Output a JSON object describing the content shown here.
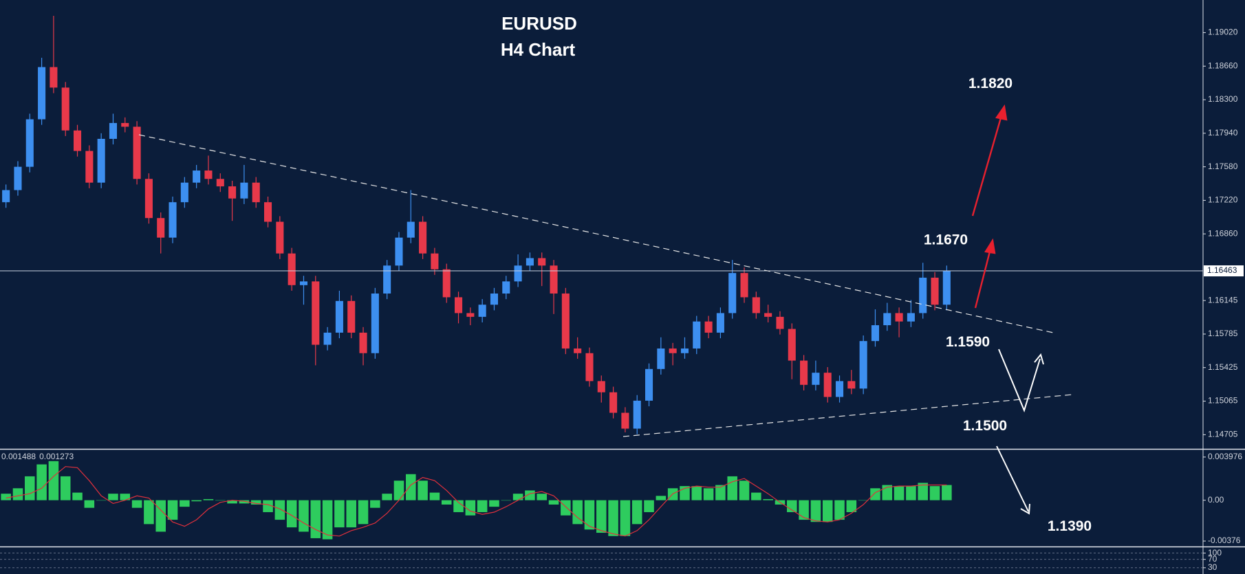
{
  "chart_data": [
    {
      "type": "candlestick",
      "title": "EURUSD",
      "subtitle": "H4 Chart",
      "up_color": "#3d8ff0",
      "down_color": "#e8394a",
      "open": [
        1.172,
        1.1733,
        1.1758,
        1.1809,
        1.1865,
        1.1843,
        1.1797,
        1.1775,
        1.1741,
        1.1788,
        1.1805,
        1.1801,
        1.1745,
        1.1703,
        1.1682,
        1.172,
        1.1741,
        1.1754,
        1.1745,
        1.1737,
        1.1724,
        1.1741,
        1.172,
        1.1699,
        1.1665,
        1.1631,
        1.1635,
        1.1567,
        1.158,
        1.1614,
        1.158,
        1.1558,
        1.1622,
        1.1652,
        1.1682,
        1.1699,
        1.1665,
        1.1648,
        1.1618,
        1.1601,
        1.1597,
        1.161,
        1.1622,
        1.1635,
        1.1652,
        1.166,
        1.1652,
        1.1622,
        1.1563,
        1.1558,
        1.1528,
        1.1516,
        1.1494,
        1.1477,
        1.1507,
        1.1541,
        1.1563,
        1.1558,
        1.1563,
        1.1592,
        1.158,
        1.1601,
        1.1644,
        1.1618,
        1.1601,
        1.1597,
        1.1584,
        1.155,
        1.1524,
        1.1537,
        1.1511,
        1.1528,
        1.152,
        1.1571,
        1.1588,
        1.1601,
        1.1592,
        1.1601,
        1.1639,
        1.161
      ],
      "high": [
        1.1739,
        1.1764,
        1.1815,
        1.1875,
        1.192,
        1.1849,
        1.1803,
        1.1781,
        1.1794,
        1.1815,
        1.1811,
        1.1807,
        1.1751,
        1.1709,
        1.1726,
        1.1747,
        1.176,
        1.177,
        1.1751,
        1.1743,
        1.176,
        1.1747,
        1.1726,
        1.1705,
        1.1671,
        1.1641,
        1.1641,
        1.1586,
        1.1625,
        1.162,
        1.1586,
        1.1628,
        1.1658,
        1.1688,
        1.1733,
        1.1705,
        1.1671,
        1.1654,
        1.1624,
        1.1607,
        1.1616,
        1.1628,
        1.1641,
        1.1664,
        1.1666,
        1.1666,
        1.1658,
        1.1628,
        1.1575,
        1.1564,
        1.1534,
        1.1522,
        1.15,
        1.1513,
        1.1547,
        1.1575,
        1.1569,
        1.1575,
        1.1598,
        1.1598,
        1.1607,
        1.1658,
        1.165,
        1.1624,
        1.161,
        1.1603,
        1.159,
        1.1556,
        1.155,
        1.1543,
        1.1534,
        1.154,
        1.1577,
        1.1605,
        1.1612,
        1.1607,
        1.1615,
        1.1655,
        1.1645,
        1.1652
      ],
      "low": [
        1.1714,
        1.1727,
        1.1752,
        1.1803,
        1.1837,
        1.1791,
        1.1769,
        1.1735,
        1.1735,
        1.1782,
        1.1795,
        1.1739,
        1.1697,
        1.1665,
        1.1676,
        1.1714,
        1.1735,
        1.1739,
        1.1731,
        1.17,
        1.1718,
        1.1714,
        1.1693,
        1.1659,
        1.1625,
        1.161,
        1.1545,
        1.1561,
        1.1574,
        1.1574,
        1.1545,
        1.1552,
        1.1616,
        1.1646,
        1.1676,
        1.1659,
        1.1642,
        1.1612,
        1.159,
        1.1588,
        1.1591,
        1.1604,
        1.1616,
        1.1629,
        1.1646,
        1.163,
        1.16,
        1.1557,
        1.1552,
        1.1522,
        1.1505,
        1.1488,
        1.1473,
        1.1471,
        1.1501,
        1.1535,
        1.1545,
        1.1552,
        1.1557,
        1.1574,
        1.1574,
        1.1595,
        1.1612,
        1.1595,
        1.1591,
        1.1578,
        1.153,
        1.1518,
        1.1518,
        1.1505,
        1.1505,
        1.1514,
        1.1514,
        1.1565,
        1.1582,
        1.1575,
        1.1586,
        1.1595,
        1.1604,
        1.1604
      ],
      "close": [
        1.1733,
        1.1758,
        1.1809,
        1.1865,
        1.1843,
        1.1797,
        1.1775,
        1.1741,
        1.1788,
        1.1805,
        1.1801,
        1.1745,
        1.1703,
        1.1682,
        1.172,
        1.1741,
        1.1754,
        1.1745,
        1.1737,
        1.1724,
        1.1741,
        1.172,
        1.1699,
        1.1665,
        1.1631,
        1.1635,
        1.1567,
        1.158,
        1.1614,
        1.158,
        1.1558,
        1.1622,
        1.1652,
        1.1682,
        1.1699,
        1.1665,
        1.1648,
        1.1618,
        1.1601,
        1.1597,
        1.161,
        1.1622,
        1.1635,
        1.1652,
        1.166,
        1.1652,
        1.1622,
        1.1563,
        1.1558,
        1.1528,
        1.1516,
        1.1494,
        1.1477,
        1.1507,
        1.1541,
        1.1563,
        1.1558,
        1.1563,
        1.1592,
        1.158,
        1.1601,
        1.1644,
        1.1618,
        1.1601,
        1.1597,
        1.1584,
        1.155,
        1.1524,
        1.1537,
        1.1511,
        1.1528,
        1.152,
        1.1571,
        1.1588,
        1.1601,
        1.1592,
        1.1601,
        1.1639,
        1.161,
        1.1646
      ],
      "ylim": [
        1.1456,
        1.1937
      ],
      "yticks": [
        {
          "value": 1.1902,
          "label": "1.19020"
        },
        {
          "value": 1.1866,
          "label": "1.18660"
        },
        {
          "value": 1.183,
          "label": "1.18300"
        },
        {
          "value": 1.1794,
          "label": "1.17940"
        },
        {
          "value": 1.1758,
          "label": "1.17580"
        },
        {
          "value": 1.1722,
          "label": "1.17220"
        },
        {
          "value": 1.1686,
          "label": "1.16860"
        },
        {
          "value": 1.16145,
          "label": "1.16145"
        },
        {
          "value": 1.15785,
          "label": "1.15785"
        },
        {
          "value": 1.15425,
          "label": "1.15425"
        },
        {
          "value": 1.15065,
          "label": "1.15065"
        },
        1.14705
      ],
      "current_price": 1.16463,
      "annotations": [
        {
          "value": 1.182,
          "label": "1.1820"
        },
        {
          "value": 1.167,
          "label": "1.1670"
        },
        {
          "value": 1.159,
          "label": "1.1590"
        },
        {
          "value": 1.15,
          "label": "1.1500"
        },
        {
          "value": 1.139,
          "label": "1.1390"
        }
      ]
    },
    {
      "type": "bar",
      "readout": [
        0.001488,
        0.001273
      ],
      "color": "#2ecc5e",
      "signal_color": "#e0303c",
      "values": [
        0.0006,
        0.0011,
        0.0022,
        0.0033,
        0.0036,
        0.0022,
        0.0007,
        -0.0007,
        0.0,
        0.0006,
        0.0006,
        -0.0007,
        -0.0022,
        -0.0029,
        -0.0018,
        -0.0006,
        -0.0001,
        0.0001,
        0.0,
        -0.0003,
        -0.0003,
        -0.0004,
        -0.0011,
        -0.0018,
        -0.0025,
        -0.0029,
        -0.0035,
        -0.0036,
        -0.0025,
        -0.0025,
        -0.0022,
        -0.0007,
        0.0006,
        0.0018,
        0.0024,
        0.0018,
        0.0007,
        -0.0004,
        -0.0011,
        -0.0014,
        -0.0011,
        -0.0006,
        0.0,
        0.0006,
        0.0009,
        0.0006,
        -0.0004,
        -0.0014,
        -0.0022,
        -0.0027,
        -0.003,
        -0.0033,
        -0.0033,
        -0.0022,
        -0.0011,
        0.0004,
        0.0011,
        0.0013,
        0.0013,
        0.0011,
        0.0014,
        0.0022,
        0.0018,
        0.0007,
        0.0001,
        -0.0004,
        -0.0011,
        -0.0018,
        -0.002,
        -0.002,
        -0.0018,
        -0.0011,
        0.0,
        0.0011,
        0.0014,
        0.0013,
        0.0013,
        0.0016,
        0.0013,
        0.0014
      ],
      "signal": [
        0.0002,
        0.0004,
        0.0006,
        0.0011,
        0.0022,
        0.0031,
        0.003,
        0.0018,
        0.0004,
        -0.0003,
        0.0,
        0.0004,
        0.0002,
        -0.0009,
        -0.002,
        -0.0024,
        -0.0018,
        -0.0008,
        -0.0002,
        0.0,
        -0.0001,
        -0.0003,
        -0.0004,
        -0.0008,
        -0.0014,
        -0.0021,
        -0.0027,
        -0.0032,
        -0.0033,
        -0.0028,
        -0.0025,
        -0.0021,
        -0.0012,
        0.0,
        0.0014,
        0.0021,
        0.0018,
        0.0009,
        -0.0002,
        -0.001,
        -0.0013,
        -0.0011,
        -0.0006,
        0.0,
        0.0006,
        0.0008,
        0.0004,
        -0.0006,
        -0.0016,
        -0.0024,
        -0.0028,
        -0.0031,
        -0.0033,
        -0.0028,
        -0.0018,
        -0.0006,
        0.0006,
        0.0011,
        0.0013,
        0.0012,
        0.0012,
        0.0017,
        0.002,
        0.0013,
        0.0006,
        -0.0002,
        -0.0009,
        -0.0016,
        -0.0019,
        -0.002,
        -0.0018,
        -0.0012,
        -0.0004,
        0.0007,
        0.0012,
        0.0013,
        0.0013,
        0.0014,
        0.0014,
        0.0014
      ],
      "ylim": [
        -0.0042,
        0.0046
      ],
      "yticks": [
        0.003976,
        {
          "value": 0,
          "label": "0.00"
        },
        -0.00376
      ]
    },
    {
      "type": "line",
      "ylim": [
        0,
        125
      ],
      "yticks": [
        100,
        70,
        30
      ]
    }
  ]
}
